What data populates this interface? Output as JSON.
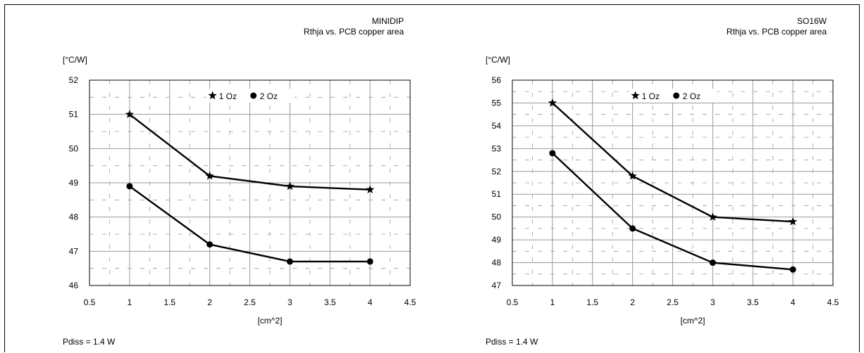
{
  "chart_data": [
    {
      "type": "line",
      "title": "MINIDIP",
      "subtitle": "Rthja vs. PCB copper area",
      "ylabel": "[°C/W]",
      "xlabel": "[cm^2]",
      "xlim": [
        0.5,
        4.5
      ],
      "ylim": [
        46,
        52
      ],
      "xticks": [
        "0.5",
        "1",
        "1.5",
        "2",
        "2.5",
        "3",
        "3.5",
        "4",
        "4.5"
      ],
      "yticks": [
        "46",
        "47",
        "48",
        "49",
        "50",
        "51",
        "52"
      ],
      "grid": true,
      "legend_position": "top-center",
      "x": [
        1,
        2,
        3,
        4
      ],
      "series": [
        {
          "name": "1 Oz",
          "marker": "star",
          "values": [
            51.0,
            49.2,
            48.9,
            48.8
          ]
        },
        {
          "name": "2 Oz",
          "marker": "circle",
          "values": [
            48.9,
            47.2,
            46.7,
            46.7
          ]
        }
      ],
      "note": "Pdiss = 1.4 W"
    },
    {
      "type": "line",
      "title": "SO16W",
      "subtitle": "Rthja vs. PCB copper area",
      "ylabel": "[°C/W]",
      "xlabel": "[cm^2]",
      "xlim": [
        0.5,
        4.5
      ],
      "ylim": [
        47,
        56
      ],
      "xticks": [
        "0.5",
        "1",
        "1.5",
        "2",
        "2.5",
        "3",
        "3.5",
        "4",
        "4.5"
      ],
      "yticks": [
        "47",
        "48",
        "49",
        "50",
        "51",
        "52",
        "53",
        "54",
        "55",
        "56"
      ],
      "grid": true,
      "legend_position": "top-center",
      "x": [
        1,
        2,
        3,
        4
      ],
      "series": [
        {
          "name": "1 Oz",
          "marker": "star",
          "values": [
            55.0,
            51.8,
            50.0,
            49.8
          ]
        },
        {
          "name": "2 Oz",
          "marker": "circle",
          "values": [
            52.8,
            49.5,
            48.0,
            47.7
          ]
        }
      ],
      "note": "Pdiss = 1.4 W"
    }
  ],
  "colors": {
    "line": "#000000",
    "grid": "#9a9a9a",
    "axis": "#000000"
  }
}
